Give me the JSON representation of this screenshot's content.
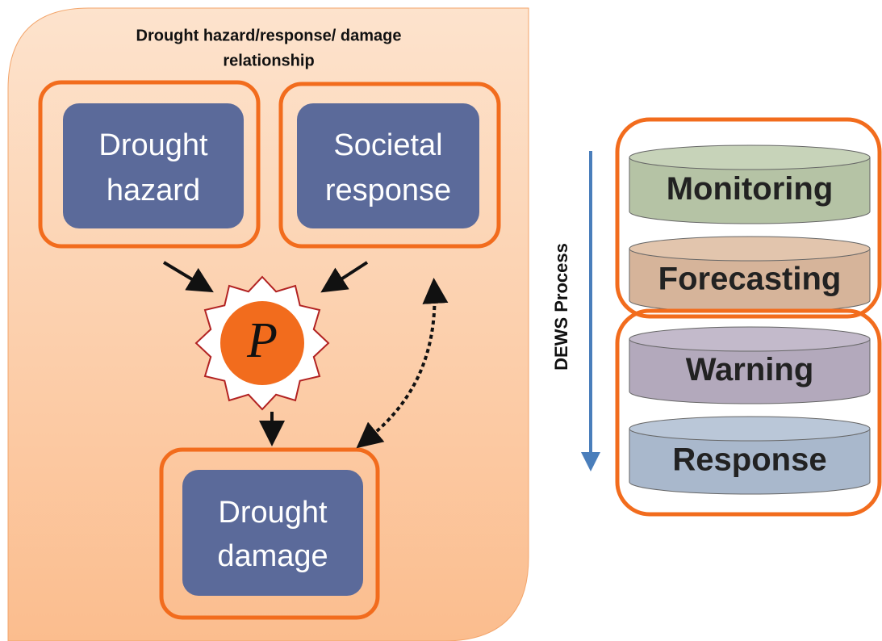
{
  "title": [
    "Drought hazard/response/ damage relationship",
    "relationship"
  ],
  "nodes": [
    {
      "lines": [
        "Drought",
        "hazard"
      ]
    },
    {
      "lines": [
        "Societal",
        "response"
      ]
    },
    {
      "lines": [
        "Drought",
        "damage"
      ]
    }
  ],
  "symbol": "P",
  "process_label": "DEWS Process",
  "stages": [
    "Monitoring",
    "Forecasting",
    "Warning",
    "Response"
  ]
}
